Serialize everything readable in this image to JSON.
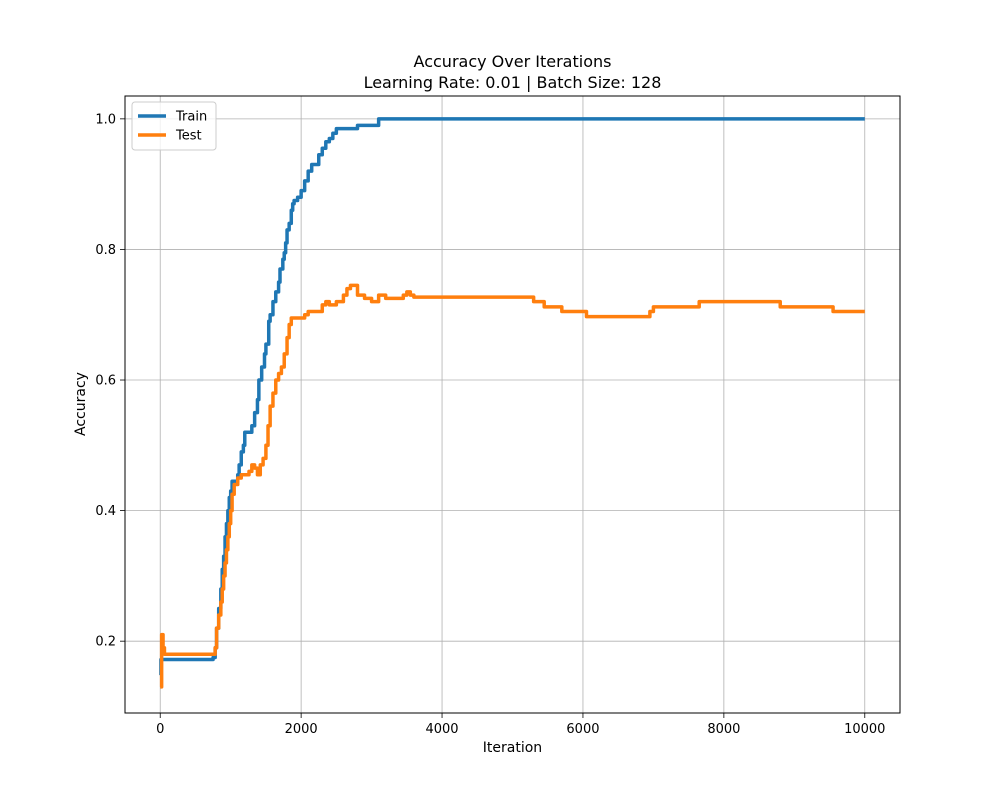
{
  "chart_data": {
    "type": "line",
    "title": "Accuracy Over Iterations",
    "subtitle": "Learning Rate: 0.01 | Batch Size: 128",
    "xlabel": "Iteration",
    "ylabel": "Accuracy",
    "xlim": [
      -500,
      10500
    ],
    "ylim": [
      0.09,
      1.035
    ],
    "xticks": [
      0,
      2000,
      4000,
      6000,
      8000,
      10000
    ],
    "xtick_labels": [
      "0",
      "2000",
      "4000",
      "6000",
      "8000",
      "10000"
    ],
    "yticks": [
      0.2,
      0.4,
      0.6,
      0.8,
      1.0
    ],
    "ytick_labels": [
      "0.2",
      "0.4",
      "0.6",
      "0.8",
      "1.0"
    ],
    "grid": true,
    "legend_position": "top-left",
    "series": [
      {
        "name": "Train",
        "color": "#1f77b4",
        "step": true,
        "x": [
          0,
          10,
          750,
          780,
          800,
          830,
          860,
          880,
          900,
          920,
          940,
          960,
          980,
          1000,
          1020,
          1050,
          1080,
          1100,
          1120,
          1150,
          1180,
          1200,
          1250,
          1300,
          1340,
          1380,
          1400,
          1440,
          1480,
          1500,
          1540,
          1560,
          1600,
          1640,
          1680,
          1700,
          1740,
          1760,
          1780,
          1800,
          1830,
          1860,
          1880,
          1900,
          1950,
          2000,
          2050,
          2100,
          2150,
          2200,
          2250,
          2300,
          2350,
          2400,
          2450,
          2500,
          2550,
          2600,
          2800,
          3000,
          3100,
          10000
        ],
        "y": [
          0.148,
          0.172,
          0.175,
          0.19,
          0.22,
          0.25,
          0.28,
          0.31,
          0.33,
          0.36,
          0.38,
          0.4,
          0.42,
          0.43,
          0.445,
          0.445,
          0.445,
          0.455,
          0.47,
          0.49,
          0.5,
          0.52,
          0.52,
          0.53,
          0.55,
          0.57,
          0.6,
          0.62,
          0.64,
          0.655,
          0.69,
          0.7,
          0.72,
          0.735,
          0.75,
          0.77,
          0.785,
          0.795,
          0.81,
          0.83,
          0.84,
          0.86,
          0.87,
          0.875,
          0.88,
          0.89,
          0.905,
          0.92,
          0.93,
          0.93,
          0.945,
          0.955,
          0.965,
          0.97,
          0.978,
          0.985,
          0.985,
          0.985,
          0.99,
          0.99,
          1.0,
          1.0
        ]
      },
      {
        "name": "Test",
        "color": "#ff7f0e",
        "step": true,
        "x": [
          0,
          20,
          40,
          60,
          750,
          780,
          800,
          830,
          860,
          880,
          900,
          920,
          940,
          960,
          980,
          1000,
          1020,
          1050,
          1100,
          1150,
          1200,
          1260,
          1300,
          1340,
          1380,
          1420,
          1460,
          1500,
          1530,
          1560,
          1600,
          1640,
          1680,
          1720,
          1760,
          1800,
          1830,
          1860,
          1900,
          1950,
          2050,
          2100,
          2200,
          2300,
          2350,
          2400,
          2500,
          2600,
          2650,
          2700,
          2800,
          2900,
          3000,
          3100,
          3200,
          3300,
          3450,
          3500,
          3550,
          3600,
          3900,
          4200,
          5300,
          5450,
          5700,
          6050,
          6800,
          6950,
          7000,
          7650,
          8800,
          9000,
          9550,
          10000
        ],
        "y": [
          0.13,
          0.21,
          0.19,
          0.18,
          0.18,
          0.19,
          0.22,
          0.24,
          0.26,
          0.28,
          0.3,
          0.32,
          0.34,
          0.36,
          0.38,
          0.4,
          0.425,
          0.44,
          0.45,
          0.455,
          0.455,
          0.46,
          0.47,
          0.465,
          0.455,
          0.47,
          0.48,
          0.5,
          0.53,
          0.56,
          0.58,
          0.6,
          0.61,
          0.62,
          0.64,
          0.665,
          0.685,
          0.695,
          0.695,
          0.695,
          0.7,
          0.705,
          0.705,
          0.715,
          0.72,
          0.715,
          0.72,
          0.73,
          0.74,
          0.745,
          0.73,
          0.725,
          0.72,
          0.73,
          0.725,
          0.725,
          0.73,
          0.735,
          0.73,
          0.727,
          0.727,
          0.727,
          0.72,
          0.712,
          0.705,
          0.697,
          0.697,
          0.705,
          0.712,
          0.72,
          0.712,
          0.712,
          0.705,
          0.705
        ]
      }
    ]
  }
}
